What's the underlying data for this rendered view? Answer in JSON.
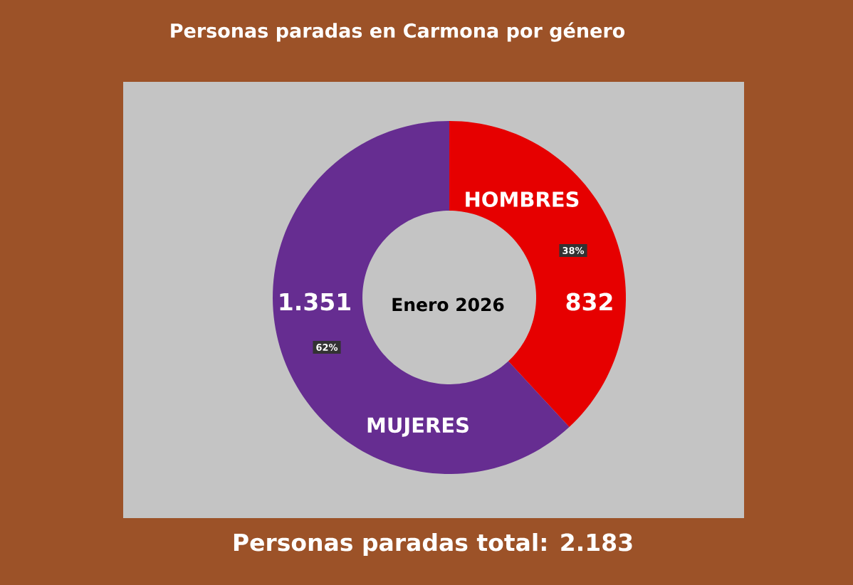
{
  "chart_data": {
    "type": "donut",
    "title": "Personas paradas en Carmona por género",
    "categories": [
      "HOMBRES",
      "MUJERES"
    ],
    "values": [
      832,
      1351
    ],
    "colors": [
      "#e60000",
      "#662d91"
    ],
    "value_labels": [
      "832",
      "1.351"
    ],
    "annotations": [
      "Enero 2026",
      "38%",
      "62%",
      "Personas paradas total: 2.183"
    ]
  }
}
